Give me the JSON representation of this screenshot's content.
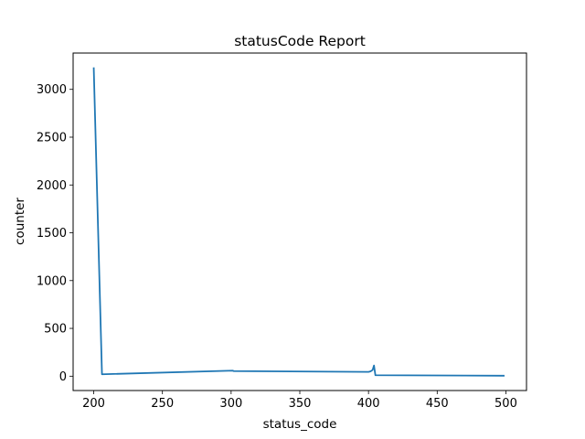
{
  "chart_data": {
    "type": "line",
    "title": "statusCode Report",
    "xlabel": "status_code",
    "ylabel": "counter",
    "xlim": [
      185,
      515
    ],
    "ylim": [
      -150,
      3380
    ],
    "xticks": [
      200,
      250,
      300,
      350,
      400,
      450,
      500
    ],
    "yticks": [
      0,
      500,
      1000,
      1500,
      2000,
      2500,
      3000
    ],
    "grid": false,
    "series": [
      {
        "color": "#1f77b4",
        "x": [
          200,
          206,
          301,
          302,
          400,
          401,
          402,
          403,
          404,
          405,
          499
        ],
        "y": [
          3230,
          20,
          58,
          53,
          45,
          48,
          55,
          65,
          112,
          10,
          5
        ]
      }
    ]
  }
}
